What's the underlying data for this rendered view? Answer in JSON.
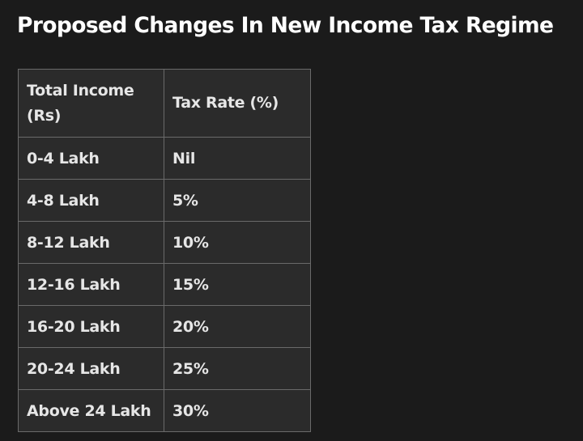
{
  "title": "Proposed Changes In New Income Tax Regime",
  "table": {
    "headers": [
      "Total Income (Rs)",
      "Tax Rate (%)"
    ],
    "rows": [
      [
        "0-4 Lakh",
        "Nil"
      ],
      [
        "4-8 Lakh",
        "5%"
      ],
      [
        "8-12 Lakh",
        "10%"
      ],
      [
        "12-16 Lakh",
        "15%"
      ],
      [
        "16-20 Lakh",
        "20%"
      ],
      [
        "20-24 Lakh",
        "25%"
      ],
      [
        "Above 24 Lakh",
        "30%"
      ]
    ]
  },
  "colors": {
    "background": "#1b1b1b",
    "table_background": "#2b2b2b",
    "border": "#6a6a6a",
    "title_text": "#ffffff",
    "cell_text": "#e6e6e6"
  }
}
